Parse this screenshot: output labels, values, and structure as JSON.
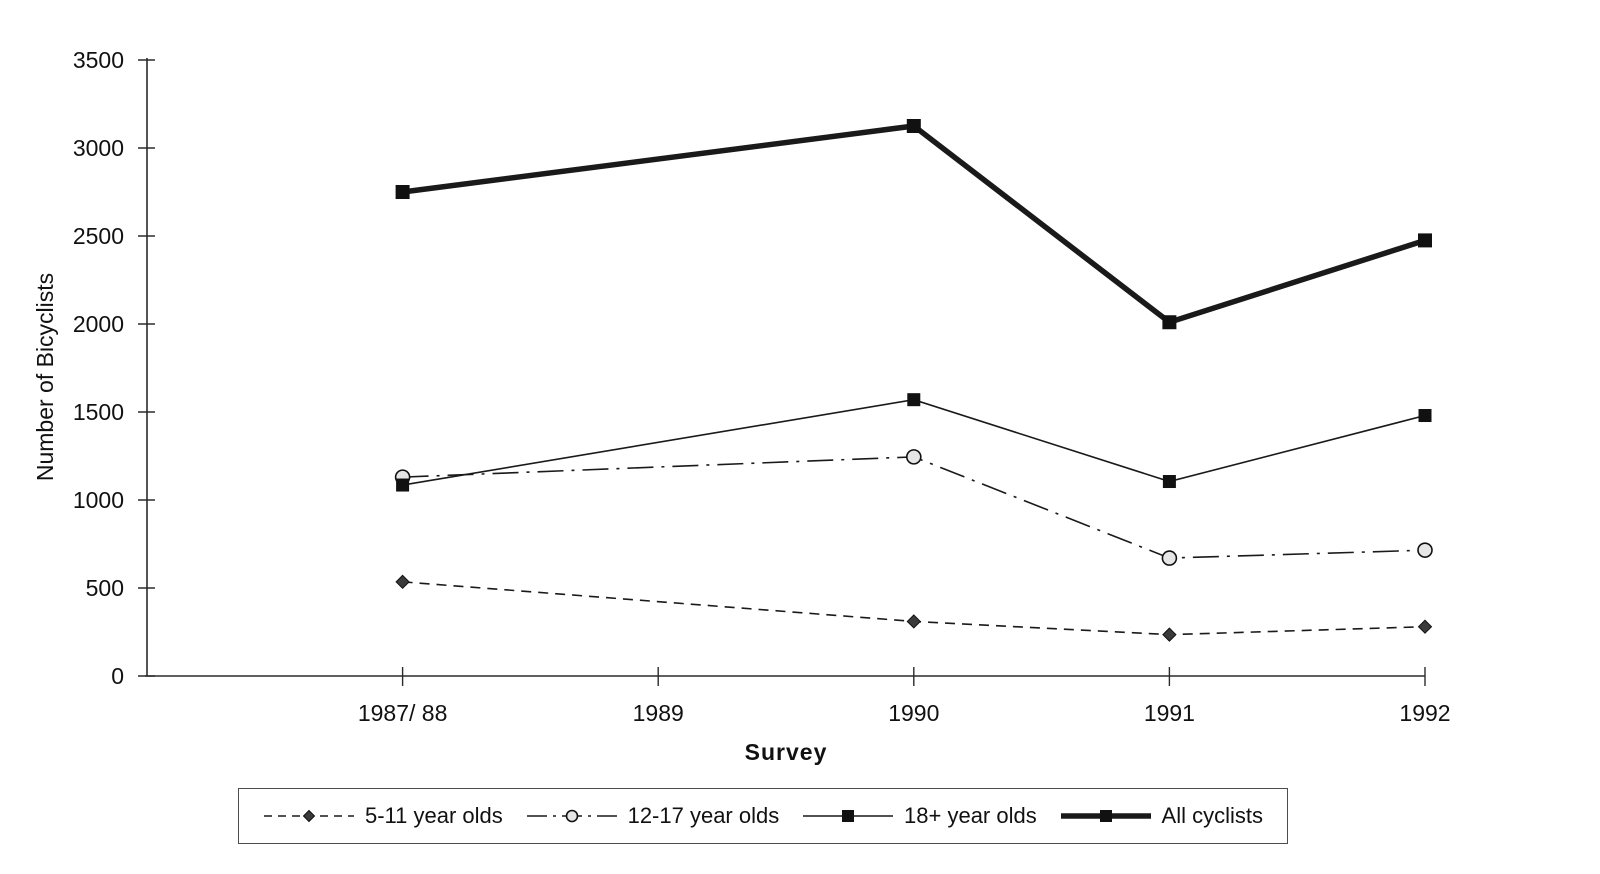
{
  "chart_data": {
    "type": "line",
    "title": "",
    "xlabel": "Survey",
    "ylabel": "Number of Bicyclists",
    "categories": [
      "1987/ 88",
      "1989",
      "1990",
      "1991",
      "1992"
    ],
    "y_ticks": [
      0,
      500,
      1000,
      1500,
      2000,
      2500,
      3000,
      3500
    ],
    "ylim": [
      0,
      3500
    ],
    "grid": false,
    "legend_position": "bottom",
    "series": [
      {
        "name": "5-11 year olds",
        "marker": "diamond",
        "line": "dashed",
        "thick": false,
        "values": [
          535,
          null,
          310,
          235,
          280
        ]
      },
      {
        "name": "12-17 year olds",
        "marker": "circle",
        "line": "dashdot",
        "thick": false,
        "values": [
          1130,
          null,
          1245,
          670,
          715
        ]
      },
      {
        "name": "18+ year olds",
        "marker": "square",
        "line": "solid",
        "thick": false,
        "values": [
          1085,
          null,
          1570,
          1105,
          1480
        ]
      },
      {
        "name": "All cyclists",
        "marker": "square",
        "line": "solid",
        "thick": true,
        "values": [
          2750,
          null,
          3125,
          2010,
          2475
        ]
      }
    ],
    "colors": {
      "axis": "#2b2b2b",
      "line": "#1a1a1a",
      "diamond_fill": "#3a3a3a",
      "circle_fill": "#e6e6e6",
      "square_fill": "#111111"
    }
  }
}
